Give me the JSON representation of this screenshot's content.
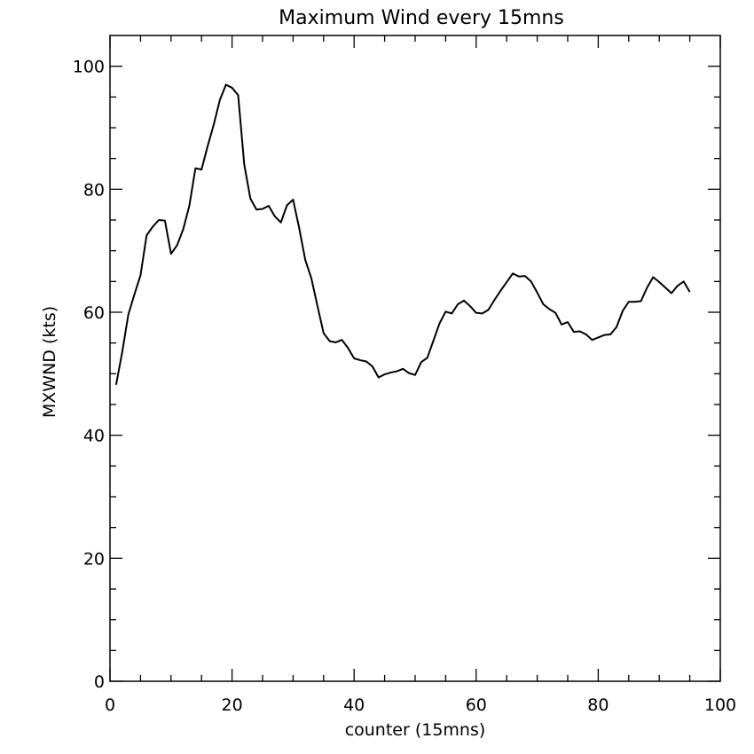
{
  "chart_data": {
    "type": "line",
    "title": "Maximum Wind every 15mns",
    "xlabel": "counter (15mns)",
    "ylabel": "MXWND (kts)",
    "xlim": [
      0,
      100
    ],
    "ylim": [
      0,
      105
    ],
    "grid": false,
    "x_ticks": [
      0,
      20,
      40,
      60,
      80,
      100
    ],
    "y_ticks": [
      0,
      20,
      40,
      60,
      80,
      100
    ],
    "x_tick_labels": [
      "0",
      "20",
      "40",
      "60",
      "80",
      "100"
    ],
    "y_tick_labels": [
      "0",
      "20",
      "40",
      "60",
      "80",
      "100"
    ],
    "line_color": "#000000",
    "series": [
      {
        "x": [
          1,
          2,
          3,
          4,
          5,
          6,
          7,
          8,
          9,
          10,
          11,
          12,
          13,
          14,
          15,
          16,
          17,
          18,
          19,
          20,
          21,
          22,
          23,
          24,
          25,
          26,
          27,
          28,
          29,
          30,
          31,
          32,
          33,
          34,
          35,
          36,
          37,
          38,
          39,
          40,
          41,
          42,
          43,
          44,
          45,
          46,
          47,
          48,
          49,
          50,
          51,
          52,
          53,
          54,
          55,
          56,
          57,
          58,
          59,
          60,
          61,
          62,
          63,
          64,
          65,
          66,
          67,
          68,
          69,
          70,
          71,
          72,
          73,
          74,
          75,
          76,
          77,
          78,
          79,
          80,
          81,
          82,
          83,
          84,
          85,
          86,
          87,
          88,
          89,
          90,
          91,
          92,
          93,
          94,
          95
        ],
        "values": [
          48.2,
          53.5,
          59.6,
          62.9,
          66.0,
          72.5,
          73.9,
          75.0,
          74.9,
          69.5,
          70.9,
          73.5,
          77.3,
          83.4,
          83.2,
          87.0,
          90.5,
          94.5,
          97.0,
          96.5,
          95.3,
          84.0,
          78.5,
          76.7,
          76.8,
          77.3,
          75.6,
          74.6,
          77.4,
          78.3,
          73.7,
          68.5,
          65.5,
          61.0,
          56.6,
          55.3,
          55.1,
          55.5,
          54.2,
          52.5,
          52.2,
          52.0,
          51.2,
          49.4,
          49.9,
          50.2,
          50.4,
          50.8,
          50.1,
          49.8,
          51.9,
          52.6,
          55.4,
          58.2,
          60.1,
          59.8,
          61.3,
          61.9,
          61.0,
          59.9,
          59.8,
          60.4,
          62.0,
          63.5,
          64.9,
          66.3,
          65.8,
          65.9,
          65.0,
          63.2,
          61.3,
          60.5,
          59.9,
          58.0,
          58.4,
          56.8,
          56.9,
          56.4,
          55.5,
          55.9,
          56.3,
          56.4,
          57.6,
          60.2,
          61.7,
          61.7,
          61.8,
          64.0,
          65.7,
          64.9,
          64.0,
          63.1,
          64.3,
          65.0,
          63.3
        ]
      }
    ]
  }
}
